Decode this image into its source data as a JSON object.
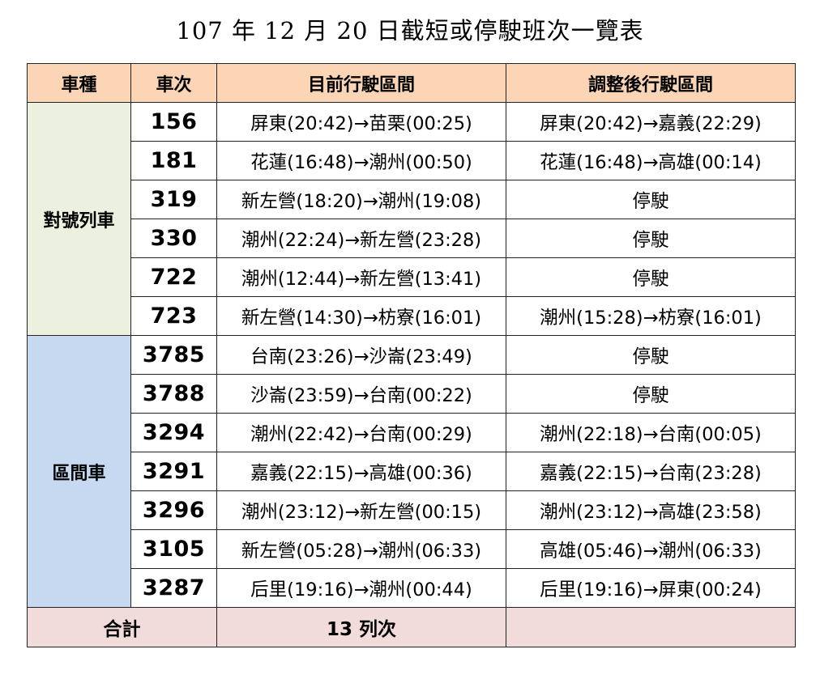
{
  "title": "107 年 12 月 20 日截短或停駛班次一覽表",
  "headers": {
    "type": "車種",
    "number": "車次",
    "current": "目前行駛區間",
    "adjusted": "調整後行駛區間"
  },
  "groups": [
    {
      "name": "對號列車",
      "color": "#ebf1de",
      "rows": [
        {
          "no": "156",
          "current": "屏東(20:42)→苗栗(00:25)",
          "adjusted": "屏東(20:42)→嘉義(22:29)"
        },
        {
          "no": "181",
          "current": "花蓮(16:48)→潮州(00:50)",
          "adjusted": "花蓮(16:48)→高雄(00:14)"
        },
        {
          "no": "319",
          "current": "新左營(18:20)→潮州(19:08)",
          "adjusted": "停駛"
        },
        {
          "no": "330",
          "current": "潮州(22:24)→新左營(23:28)",
          "adjusted": "停駛"
        },
        {
          "no": "722",
          "current": "潮州(12:44)→新左營(13:41)",
          "adjusted": "停駛"
        },
        {
          "no": "723",
          "current": "新左營(14:30)→枋寮(16:01)",
          "adjusted": "潮州(15:28)→枋寮(16:01)"
        }
      ]
    },
    {
      "name": "區間車",
      "color": "#c6d9f1",
      "rows": [
        {
          "no": "3785",
          "current": "台南(23:26)→沙崙(23:49)",
          "adjusted": "停駛"
        },
        {
          "no": "3788",
          "current": "沙崙(23:59)→台南(00:22)",
          "adjusted": "停駛"
        },
        {
          "no": "3294",
          "current": "潮州(22:42)→台南(00:29)",
          "adjusted": "潮州(22:18)→台南(00:05)"
        },
        {
          "no": "3291",
          "current": "嘉義(22:15)→高雄(00:36)",
          "adjusted": "嘉義(22:15)→台南(23:28)"
        },
        {
          "no": "3296",
          "current": "潮州(23:12)→新左營(00:15)",
          "adjusted": "潮州(23:12)→高雄(23:58)"
        },
        {
          "no": "3105",
          "current": "新左營(05:28)→潮州(06:33)",
          "adjusted": "高雄(05:46)→潮州(06:33)"
        },
        {
          "no": "3287",
          "current": "后里(19:16)→潮州(00:44)",
          "adjusted": "后里(19:16)→屏東(00:24)"
        }
      ]
    }
  ],
  "total": {
    "label": "合計",
    "value": "13 列次",
    "adjusted": ""
  },
  "colors": {
    "header_bg": "#fbd5b5",
    "express_bg": "#ebf1de",
    "local_bg": "#c6d9f1",
    "total_bg": "#f2dcdb"
  }
}
